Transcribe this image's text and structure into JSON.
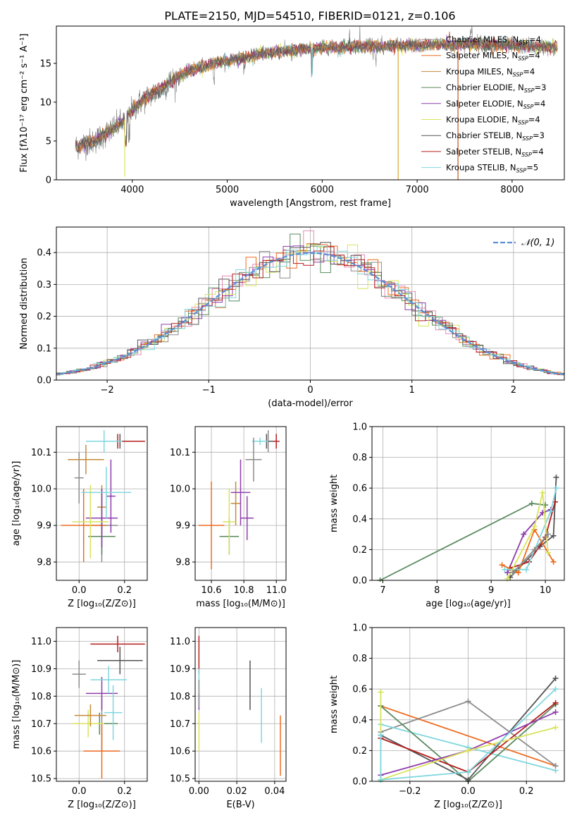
{
  "figure": {
    "title": "PLATE=2150, MJD=54510, FIBERID=0121, z=0.106"
  },
  "series": [
    {
      "name": "Chabrier MILES",
      "nssp": "4",
      "color": "#8c8c8c",
      "marker": "+"
    },
    {
      "name": "Salpeter MILES",
      "nssp": "4",
      "color": "#ee6b1e",
      "marker": "+"
    },
    {
      "name": "Kroupa MILES",
      "nssp": "4",
      "color": "#c58a3a",
      "marker": "+"
    },
    {
      "name": "Chabrier ELODIE",
      "nssp": "3",
      "color": "#5b8a5e",
      "marker": "+"
    },
    {
      "name": "Salpeter ELODIE",
      "nssp": "4",
      "color": "#8e3dad",
      "marker": "+"
    },
    {
      "name": "Kroupa ELODIE",
      "nssp": "4",
      "color": "#d9e35a",
      "marker": "+"
    },
    {
      "name": "Chabrier STELIB",
      "nssp": "3",
      "color": "#555555",
      "marker": "+"
    },
    {
      "name": "Salpeter STELIB",
      "nssp": "4",
      "color": "#b41e1e",
      "marker": "+"
    },
    {
      "name": "Kroupa STELIB",
      "nssp": "5",
      "color": "#7fd7de",
      "marker": "+"
    }
  ],
  "chart_data": [
    {
      "id": "spectrum",
      "type": "line",
      "xlabel": "wavelength [Angstrom, rest frame]",
      "ylabel": "Flux [fλ10⁻¹⁷ erg cm⁻² s⁻¹ A⁻¹]",
      "xlim": [
        3200,
        8550
      ],
      "ylim": [
        0,
        19.8
      ],
      "xticks": [
        "4000",
        "5000",
        "6000",
        "7000",
        "8000"
      ],
      "yticks": [
        "0",
        "5",
        "10",
        "15"
      ],
      "continuum": {
        "x": [
          3400,
          3500,
          3600,
          3700,
          3800,
          3900,
          4000,
          4100,
          4200,
          4300,
          4400,
          4500,
          4600,
          4800,
          5000,
          5200,
          5400,
          5600,
          5800,
          6000,
          6200,
          6400,
          6600,
          6800,
          7000,
          7200,
          7400,
          7600,
          7800,
          8000,
          8200,
          8400
        ],
        "y": [
          4.3,
          4.7,
          5.0,
          5.8,
          6.6,
          7.5,
          9.0,
          10.2,
          11.0,
          11.7,
          12.6,
          13.4,
          14.0,
          14.8,
          15.4,
          15.8,
          16.3,
          16.6,
          16.8,
          17.0,
          17.1,
          17.2,
          17.2,
          17.3,
          17.3,
          17.4,
          17.4,
          17.5,
          17.4,
          17.3,
          17.2,
          17.1
        ]
      },
      "glitches": [
        {
          "x": 3920,
          "y": 0.4
        },
        {
          "x": 5895,
          "y": 13.5
        },
        {
          "x": 6800,
          "y": 0
        },
        {
          "x": 7430,
          "y": 0
        }
      ]
    },
    {
      "id": "residual-histogram",
      "type": "histogram",
      "xlabel": "(data-model)/error",
      "ylabel": "Normed distribution",
      "xlim": [
        -2.5,
        2.5
      ],
      "ylim": [
        0,
        0.48
      ],
      "xticks": [
        "−2",
        "−1",
        "0",
        "1",
        "2"
      ],
      "yticks": [
        "0.0",
        "0.1",
        "0.2",
        "0.3",
        "0.4"
      ],
      "bin_width": 0.1,
      "reference_curve": {
        "name": "𝒩(0, 1)",
        "color": "#5b8fd6",
        "style": "dashed"
      }
    },
    {
      "id": "age-vs-Z",
      "type": "errorbar",
      "xlabel": "Z [log₁₀(Z/Z⊙)]",
      "ylabel": "age  [log₁₀(age/yr)]",
      "xlim": [
        -0.1,
        0.3
      ],
      "ylim": [
        9.75,
        10.17
      ],
      "xticks": [
        "0.0",
        "0.2"
      ],
      "yticks": [
        "9.8",
        "9.9",
        "10.0",
        "10.1"
      ],
      "points": [
        {
          "series": 0,
          "x": 0.1,
          "xerr": 0.07,
          "y": 9.9,
          "yerr": 0.1
        },
        {
          "series": 1,
          "x": 0.02,
          "xerr": 0.1,
          "y": 9.9,
          "yerr": 0.1
        },
        {
          "series": 2,
          "x": 0.1,
          "xerr": 0.02,
          "y": 9.95,
          "yerr": 0.06
        },
        {
          "series": 3,
          "x": 0.1,
          "xerr": 0.06,
          "y": 9.87,
          "yerr": 0.05
        },
        {
          "series": 4,
          "x": 0.1,
          "xerr": 0.07,
          "y": 9.92,
          "yerr": 0.08
        },
        {
          "series": 5,
          "x": 0.05,
          "xerr": 0.08,
          "y": 9.91,
          "yerr": 0.1
        },
        {
          "series": 6,
          "x": 0.18,
          "xerr": 0.11,
          "y": 10.13,
          "yerr": 0.02
        },
        {
          "series": 7,
          "x": 0.17,
          "xerr": 0.12,
          "y": 10.13,
          "yerr": 0.02
        },
        {
          "series": 8,
          "x": 0.11,
          "xerr": 0.08,
          "y": 10.13,
          "yerr": 0.03
        },
        {
          "series": 0,
          "x": 0.0,
          "xerr": 0.02,
          "y": 10.03,
          "yerr": 0.07
        },
        {
          "series": 4,
          "x": 0.14,
          "xerr": 0.02,
          "y": 9.98,
          "yerr": 0.1
        },
        {
          "series": 8,
          "x": 0.12,
          "xerr": 0.11,
          "y": 9.99,
          "yerr": 0.07
        },
        {
          "series": 2,
          "x": 0.03,
          "xerr": 0.08,
          "y": 10.08,
          "yerr": 0.04
        }
      ]
    },
    {
      "id": "age-vs-mass",
      "type": "errorbar",
      "xlabel": "mass [log₁₀(M/M⊙)]",
      "xlim": [
        10.5,
        11.06
      ],
      "ylim": [
        9.75,
        10.17
      ],
      "xticks": [
        "10.6",
        "10.8",
        "11.0"
      ],
      "yticks": [
        "9.8",
        "9.9",
        "10.0",
        "10.1"
      ],
      "points": [
        {
          "series": 0,
          "x": 10.95,
          "xerr": 0.03,
          "y": 10.13,
          "yerr": 0.03
        },
        {
          "series": 1,
          "x": 10.6,
          "xerr": 0.08,
          "y": 9.9,
          "yerr": 0.12
        },
        {
          "series": 2,
          "x": 10.75,
          "xerr": 0.03,
          "y": 9.96,
          "yerr": 0.06
        },
        {
          "series": 3,
          "x": 10.71,
          "xerr": 0.06,
          "y": 9.87,
          "yerr": 0.05
        },
        {
          "series": 4,
          "x": 10.82,
          "xerr": 0.04,
          "y": 9.92,
          "yerr": 0.06
        },
        {
          "series": 5,
          "x": 10.71,
          "xerr": 0.04,
          "y": 9.91,
          "yerr": 0.09
        },
        {
          "series": 6,
          "x": 10.94,
          "xerr": 0.04,
          "y": 10.13,
          "yerr": 0.02
        },
        {
          "series": 7,
          "x": 11.0,
          "xerr": 0.02,
          "y": 10.13,
          "yerr": 0.02
        },
        {
          "series": 8,
          "x": 10.9,
          "xerr": 0.05,
          "y": 10.13,
          "yerr": 0.01
        },
        {
          "series": 0,
          "x": 10.86,
          "xerr": 0.05,
          "y": 10.08,
          "yerr": 0.06
        },
        {
          "series": 4,
          "x": 10.78,
          "xerr": 0.06,
          "y": 9.99,
          "yerr": 0.09
        }
      ]
    },
    {
      "id": "mass-weight-vs-age",
      "type": "line",
      "xlabel": "age  [log₁₀(age/yr)]",
      "ylabel": "mass weight",
      "xlim": [
        6.8,
        10.35
      ],
      "ylim": [
        0,
        1
      ],
      "xticks": [
        "7",
        "8",
        "9",
        "10"
      ],
      "yticks": [
        "0.0",
        "0.2",
        "0.4",
        "0.6",
        "0.8",
        "1.0"
      ],
      "lines": [
        {
          "series": 3,
          "x": [
            6.95,
            9.75,
            10.0
          ],
          "y": [
            0.0,
            0.5,
            0.49
          ]
        },
        {
          "series": 6,
          "x": [
            9.35,
            9.9,
            10.15,
            10.2
          ],
          "y": [
            0.02,
            0.22,
            0.29,
            0.67
          ]
        },
        {
          "series": 4,
          "x": [
            9.3,
            9.6,
            9.95,
            10.1
          ],
          "y": [
            0.05,
            0.3,
            0.44,
            0.46
          ]
        },
        {
          "series": 7,
          "x": [
            9.35,
            9.7,
            10.0,
            10.18
          ],
          "y": [
            0.08,
            0.12,
            0.28,
            0.51
          ]
        },
        {
          "series": 1,
          "x": [
            9.2,
            9.5,
            9.8,
            10.15
          ],
          "y": [
            0.1,
            0.05,
            0.33,
            0.12
          ]
        },
        {
          "series": 8,
          "x": [
            9.25,
            9.65,
            10.1,
            10.2
          ],
          "y": [
            0.07,
            0.07,
            0.45,
            0.6
          ]
        },
        {
          "series": 5,
          "x": [
            9.3,
            9.8,
            9.95,
            10.05
          ],
          "y": [
            0.01,
            0.35,
            0.57,
            0.18
          ]
        },
        {
          "series": 0,
          "x": [
            9.4,
            9.8,
            10.05
          ],
          "y": [
            0.05,
            0.2,
            0.3
          ]
        }
      ]
    },
    {
      "id": "mass-vs-Z",
      "type": "errorbar",
      "xlabel": "Z [log₁₀(Z/Z⊙)]",
      "ylabel": "mass [log₁₀(M/M⊙)]",
      "xlim": [
        -0.1,
        0.3
      ],
      "ylim": [
        10.49,
        11.05
      ],
      "xticks": [
        "0.0",
        "0.2"
      ],
      "yticks": [
        "10.5",
        "10.6",
        "10.7",
        "10.8",
        "10.9",
        "11.0"
      ],
      "points": [
        {
          "series": 0,
          "x": 0.1,
          "xerr": 0.02,
          "y": 10.7,
          "yerr": 0.1
        },
        {
          "series": 1,
          "x": 0.1,
          "xerr": 0.08,
          "y": 10.6,
          "yerr": 0.1
        },
        {
          "series": 3,
          "x": 0.09,
          "xerr": 0.08,
          "y": 10.7,
          "yerr": 0.04
        },
        {
          "series": 4,
          "x": 0.1,
          "xerr": 0.07,
          "y": 10.81,
          "yerr": 0.06
        },
        {
          "series": 5,
          "x": 0.04,
          "xerr": 0.07,
          "y": 10.7,
          "yerr": 0.05
        },
        {
          "series": 6,
          "x": 0.18,
          "xerr": 0.1,
          "y": 10.93,
          "yerr": 0.05
        },
        {
          "series": 7,
          "x": 0.17,
          "xerr": 0.12,
          "y": 10.99,
          "yerr": 0.03
        },
        {
          "series": 8,
          "x": 0.13,
          "xerr": 0.08,
          "y": 10.86,
          "yerr": 0.05
        },
        {
          "series": 0,
          "x": 0.0,
          "xerr": 0.03,
          "y": 10.88,
          "yerr": 0.05
        },
        {
          "series": 2,
          "x": 0.05,
          "xerr": 0.07,
          "y": 10.73,
          "yerr": 0.04
        },
        {
          "series": 8,
          "x": 0.15,
          "xerr": 0.04,
          "y": 10.74,
          "yerr": 0.1
        }
      ]
    },
    {
      "id": "mass-vs-ebv",
      "type": "errorbar",
      "xlabel": "E(B-V)",
      "xlim": [
        -0.002,
        0.046
      ],
      "ylim": [
        10.49,
        11.05
      ],
      "xticks": [
        "0.00",
        "0.02",
        "0.04"
      ],
      "yticks": [
        "10.5",
        "10.6",
        "10.7",
        "10.8",
        "10.9",
        "11.0"
      ],
      "points": [
        {
          "series": 7,
          "x": 0.0,
          "xerr": 0.0,
          "y": 10.95,
          "yerr": 0.07
        },
        {
          "series": 8,
          "x": 0.0,
          "xerr": 0.0,
          "y": 10.83,
          "yerr": 0.07
        },
        {
          "series": 4,
          "x": 0.0,
          "xerr": 0.0,
          "y": 10.78,
          "yerr": 0.03
        },
        {
          "series": 5,
          "x": 0.0,
          "xerr": 0.0,
          "y": 10.67,
          "yerr": 0.07
        },
        {
          "series": 0,
          "x": 0.0,
          "xerr": 0.0,
          "y": 10.81,
          "yerr": 0.05
        },
        {
          "series": 6,
          "x": 0.027,
          "xerr": 0.0,
          "y": 10.84,
          "yerr": 0.09
        },
        {
          "series": 8,
          "x": 0.033,
          "xerr": 0.0,
          "y": 10.73,
          "yerr": 0.1
        },
        {
          "series": 1,
          "x": 0.043,
          "xerr": 0.0,
          "y": 10.62,
          "yerr": 0.11
        }
      ]
    },
    {
      "id": "mass-weight-vs-Z",
      "type": "line",
      "xlabel": "Z [log₁₀(Z/Z⊙)]",
      "ylabel": "mass weight",
      "xlim": [
        -0.33,
        0.33
      ],
      "ylim": [
        0,
        1
      ],
      "xticks": [
        "−0.2",
        "0.0",
        "0.2"
      ],
      "yticks": [
        "0.0",
        "0.2",
        "0.4",
        "0.6",
        "0.8",
        "1.0"
      ],
      "lines": [
        {
          "series": 1,
          "x": [
            -0.3,
            0.3
          ],
          "y": [
            0.49,
            0.1
          ]
        },
        {
          "series": 0,
          "x": [
            -0.3,
            0.0,
            0.3
          ],
          "y": [
            0.32,
            0.52,
            0.1
          ]
        },
        {
          "series": 8,
          "x": [
            -0.3,
            0.0,
            0.3
          ],
          "y": [
            0.37,
            0.22,
            0.07
          ]
        },
        {
          "series": 3,
          "x": [
            -0.3,
            0.0,
            0.3
          ],
          "y": [
            0.49,
            0.0,
            0.5
          ]
        },
        {
          "series": 6,
          "x": [
            -0.3,
            0.0,
            0.3
          ],
          "y": [
            0.3,
            0.01,
            0.67
          ]
        },
        {
          "series": 7,
          "x": [
            -0.3,
            0.0,
            0.3
          ],
          "y": [
            0.28,
            0.06,
            0.51
          ]
        },
        {
          "series": 4,
          "x": [
            -0.3,
            0.0,
            0.3
          ],
          "y": [
            0.04,
            0.2,
            0.45
          ]
        },
        {
          "series": 5,
          "x": [
            -0.3,
            0.0,
            0.3
          ],
          "y": [
            0.01,
            0.2,
            0.35
          ]
        },
        {
          "series": 8,
          "x": [
            -0.3,
            0.0,
            0.3
          ],
          "y": [
            0.01,
            0.06,
            0.6
          ]
        },
        {
          "series": 5,
          "x": [
            -0.3,
            -0.3
          ],
          "y": [
            0.0,
            0.58
          ]
        },
        {
          "series": 8,
          "x": [
            -0.3,
            -0.3
          ],
          "y": [
            0.0,
            0.3
          ]
        }
      ]
    }
  ]
}
